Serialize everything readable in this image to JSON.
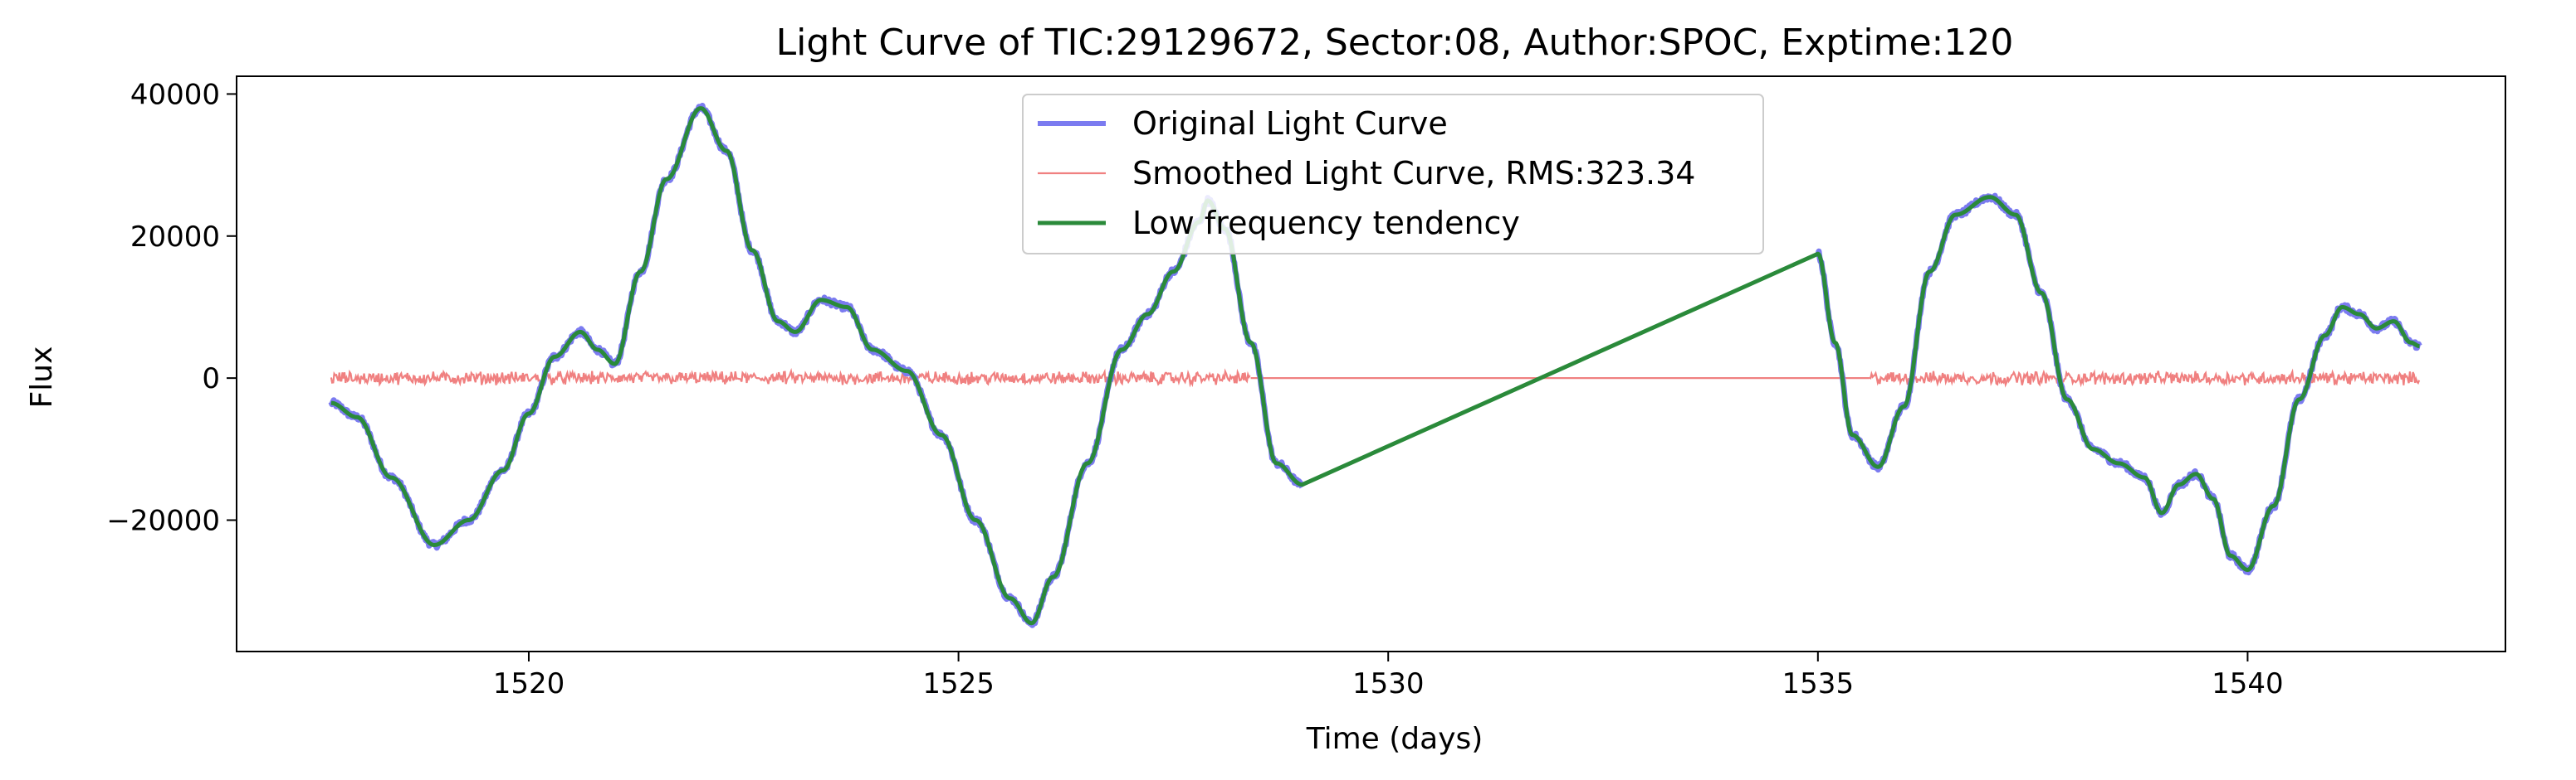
{
  "chart_data": {
    "type": "line",
    "title": "Light Curve of TIC:29129672, Sector:08, Author:SPOC, Exptime:120",
    "xlabel": "Time (days)",
    "ylabel": "Flux",
    "xlim": [
      1516.6,
      1543.0
    ],
    "ylim": [
      -38500,
      42500
    ],
    "xticks": [
      1520,
      1525,
      1530,
      1535,
      1540
    ],
    "yticks": [
      -20000,
      0,
      20000,
      40000
    ],
    "xtick_labels": [
      "1520",
      "1525",
      "1530",
      "1535",
      "1540"
    ],
    "ytick_labels": [
      "−20000",
      "0",
      "20000",
      "40000"
    ],
    "grid": false,
    "legend_position": "top-center",
    "gap": [
      1529.0,
      1535.0
    ],
    "series": [
      {
        "name": "Original Light Curve",
        "color": "#7b7bf0",
        "x": [
          1517.7,
          1518.0,
          1518.4,
          1518.9,
          1519.3,
          1519.7,
          1520.0,
          1520.3,
          1520.6,
          1520.8,
          1521.0,
          1521.3,
          1521.6,
          1522.0,
          1522.3,
          1522.6,
          1522.9,
          1523.1,
          1523.4,
          1523.7,
          1524.0,
          1524.4,
          1524.8,
          1525.2,
          1525.6,
          1525.85,
          1526.1,
          1526.5,
          1526.9,
          1527.2,
          1527.5,
          1527.8,
          1527.9,
          1528.1,
          1528.4,
          1528.7,
          1529.0,
          1535.0,
          1535.2,
          1535.4,
          1535.7,
          1536.0,
          1536.3,
          1536.6,
          1537.0,
          1537.3,
          1537.6,
          1537.9,
          1538.2,
          1538.5,
          1538.8,
          1539.0,
          1539.2,
          1539.4,
          1539.6,
          1539.8,
          1540.0,
          1540.3,
          1540.6,
          1540.9,
          1541.1,
          1541.3,
          1541.5,
          1541.7,
          1541.9,
          1542.0
        ],
        "y": [
          -3500,
          -5500,
          -14000,
          -23500,
          -20000,
          -13000,
          -5000,
          3000,
          6500,
          4000,
          2000,
          15000,
          28000,
          38000,
          32000,
          18000,
          8000,
          6500,
          11000,
          10000,
          4000,
          1000,
          -8000,
          -20000,
          -31000,
          -34500,
          -28000,
          -12000,
          4000,
          9000,
          15000,
          22000,
          25000,
          21000,
          5000,
          -12000,
          -15000,
          17500,
          5000,
          -8000,
          -12500,
          -4000,
          15000,
          23000,
          25500,
          23000,
          12000,
          -3000,
          -10000,
          -12000,
          -14000,
          -19000,
          -15000,
          -13500,
          -17000,
          -25000,
          -27000,
          -18000,
          -3000,
          6000,
          10000,
          9000,
          7000,
          8000,
          5000,
          4500
        ]
      },
      {
        "name": "Smoothed Light Curve, RMS:323.34",
        "color": "#f08080",
        "segments": [
          [
            1517.7,
            1528.4
          ],
          [
            1535.6,
            1542.0
          ]
        ],
        "rms": 323.34
      },
      {
        "name": "Low frequency tendency",
        "color": "#2a8a3a",
        "x": [
          1517.7,
          1518.0,
          1518.4,
          1518.9,
          1519.3,
          1519.7,
          1520.0,
          1520.3,
          1520.6,
          1520.8,
          1521.0,
          1521.3,
          1521.6,
          1522.0,
          1522.3,
          1522.6,
          1522.9,
          1523.1,
          1523.4,
          1523.7,
          1524.0,
          1524.4,
          1524.8,
          1525.2,
          1525.6,
          1525.85,
          1526.1,
          1526.5,
          1526.9,
          1527.2,
          1527.5,
          1527.8,
          1527.9,
          1528.1,
          1528.4,
          1528.7,
          1529.0,
          1535.0,
          1535.2,
          1535.4,
          1535.7,
          1536.0,
          1536.3,
          1536.6,
          1537.0,
          1537.3,
          1537.6,
          1537.9,
          1538.2,
          1538.5,
          1538.8,
          1539.0,
          1539.2,
          1539.4,
          1539.6,
          1539.8,
          1540.0,
          1540.3,
          1540.6,
          1540.9,
          1541.1,
          1541.3,
          1541.5,
          1541.7,
          1541.9,
          1542.0
        ],
        "y": [
          -3500,
          -5500,
          -14000,
          -23500,
          -20000,
          -13000,
          -5000,
          3000,
          6500,
          4000,
          2000,
          15000,
          28000,
          38000,
          32000,
          18000,
          8000,
          6500,
          11000,
          10000,
          4000,
          1000,
          -8000,
          -20000,
          -31000,
          -34500,
          -28000,
          -12000,
          4000,
          9000,
          15000,
          22000,
          25000,
          21000,
          5000,
          -12000,
          -15000,
          17500,
          5000,
          -8000,
          -12500,
          -4000,
          15000,
          23000,
          25500,
          23000,
          12000,
          -3000,
          -10000,
          -12000,
          -14000,
          -19000,
          -15000,
          -13500,
          -17000,
          -25000,
          -27000,
          -18000,
          -3000,
          6000,
          10000,
          9000,
          7000,
          8000,
          5000,
          4500
        ]
      }
    ]
  }
}
